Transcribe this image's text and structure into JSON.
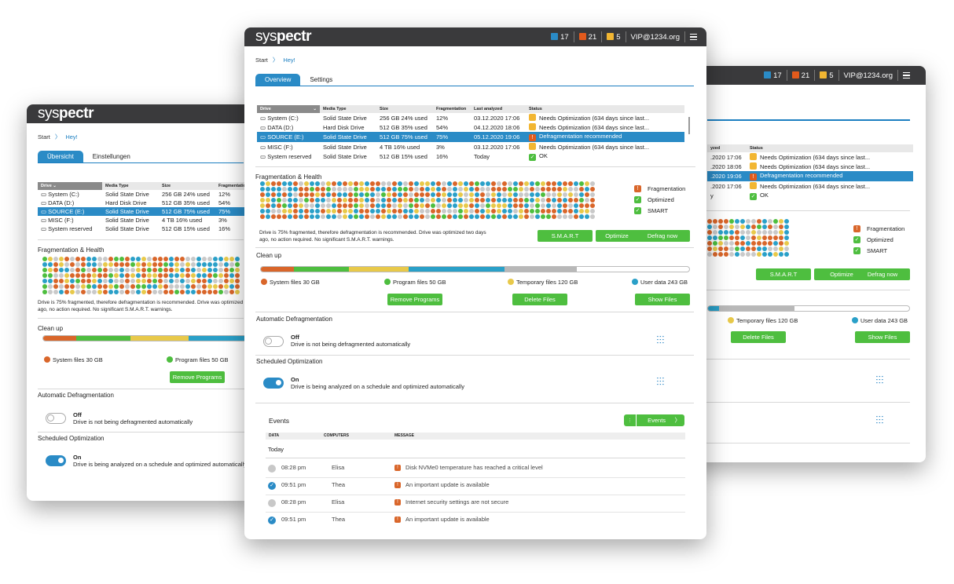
{
  "brand": {
    "logo_a": "sys",
    "logo_b": "pectr"
  },
  "header": {
    "count1": "17",
    "count2": "21",
    "count3": "5",
    "user": "VIP@1234.org"
  },
  "crumb": {
    "start": "Start",
    "current": "Hey!"
  },
  "tabs": {
    "overview": "Overview",
    "settings": "Settings"
  },
  "tabs_de": {
    "overview": "Übersicht",
    "settings": "Einstellungen"
  },
  "table": {
    "headers": [
      "Drive",
      "Media Type",
      "Size",
      "Fragmentation",
      "Last analyzed",
      "Status"
    ],
    "rows": [
      {
        "drive": "System (C:)",
        "media": "Solid State Drive",
        "size": "256 GB",
        "used": "24% used",
        "frag": "12%",
        "last": "03.12.2020 17:06",
        "status": "Needs Optimization (634 days since last...",
        "level": "warn"
      },
      {
        "drive": "DATA (D:)",
        "media": "Hard Disk Drive",
        "size": "512 GB",
        "used": "35% used",
        "frag": "54%",
        "last": "04.12.2020 18:06",
        "status": "Needs Optimization (634 days since last...",
        "level": "warn"
      },
      {
        "drive": "SOURCE (E:)",
        "media": "Solid State Drive",
        "size": "512 GB",
        "used": "75% used",
        "frag": "75%",
        "last": "05.12.2020 19:06",
        "status": "Defragmentation recommended",
        "level": "error"
      },
      {
        "drive": "MISC (F:)",
        "media": "Solid State Drive",
        "size": "4 TB",
        "used": "16% used",
        "frag": "3%",
        "last": "03.12.2020 17:06",
        "status": "Needs Optimization (634 days since last...",
        "level": "warn"
      },
      {
        "drive": "System reserved",
        "media": "Solid State Drive",
        "size": "512 GB",
        "used": "15% used",
        "frag": "16%",
        "last": "Today",
        "status": "OK",
        "level": "ok"
      }
    ]
  },
  "frag": {
    "title": "Fragmentation & Health",
    "legend": [
      "Fragmentation",
      "Optimized",
      "SMART"
    ],
    "desc": "Drive is 75% fragmented, therefore defragmentation is recommended. Drive was optimized two days ago, no action required. No significant S.M.A.R.T. warnings.",
    "buttons": [
      "S.M.A.R.T",
      "Optimize",
      "Defrag now"
    ]
  },
  "cleanup": {
    "title": "Clean up",
    "items": [
      {
        "label": "System files 30 GB",
        "color": "#d9662a",
        "pct": 10
      },
      {
        "label": "Program files 50 GB",
        "color": "#4ebe3f",
        "pct": 17
      },
      {
        "label": "Temporary files 120 GB",
        "color": "#e8c94a",
        "pct": 27
      },
      {
        "label": "User data 243 GB",
        "color": "#2aa0c8",
        "pct": 28
      }
    ],
    "buttons": [
      "Remove Programs",
      "Delete Files",
      "Show Files"
    ]
  },
  "auto": {
    "title": "Automatic Defragmentation",
    "state": "Off",
    "text": "Drive is not being defragmented automatically"
  },
  "sched": {
    "title": "Scheduled Optimization",
    "state": "On",
    "text": "Drive is being analyzed on a schedule and optimized automatically"
  },
  "events": {
    "title": "Events",
    "button": "Events",
    "cols": [
      "DATA",
      "COMPUTERS",
      "MESSAGE"
    ],
    "group": "Today",
    "rows": [
      {
        "time": "08:28 pm",
        "who": "Elisa",
        "msg": "Disk NVMe0 temperature has reached a critical level",
        "checked": false
      },
      {
        "time": "09:51 pm",
        "who": "Thea",
        "msg": "An important update is available",
        "checked": true
      },
      {
        "time": "08:28 pm",
        "who": "Elisa",
        "msg": "Internet security settings are not secure",
        "checked": false
      },
      {
        "time": "09:51 pm",
        "who": "Thea",
        "msg": "An important update is available",
        "checked": true
      }
    ]
  },
  "colors": {
    "accent": "#2a8bc6",
    "green": "#4ebe3f",
    "orange": "#d9662a",
    "yellow": "#e8c94a",
    "cyan": "#2aa0c8",
    "titlebar": "#3a3a3c"
  }
}
